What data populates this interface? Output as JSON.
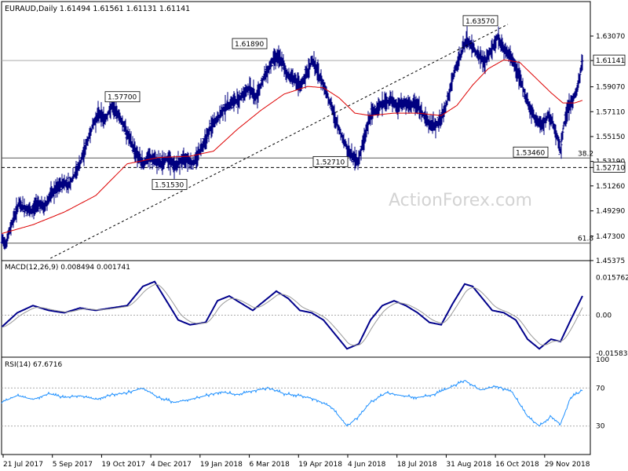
{
  "chart_data": {
    "type": "ohlc",
    "symbol_header": "EURAUD,Daily  1.61494 1.61561 1.61131 1.61141",
    "watermark": "ActionForex.com",
    "price_panel": {
      "ylim": [
        1.4537,
        1.648
      ],
      "ytick_labels": [
        "1.63070",
        "1.61141",
        "1.59070",
        "1.57110",
        "1.55150",
        "1.53190",
        "1.52710",
        "1.51260",
        "1.49290",
        "1.47300",
        "1.45375"
      ],
      "ytick_values": [
        1.6307,
        1.61141,
        1.5907,
        1.5711,
        1.5515,
        1.5319,
        1.5271,
        1.5126,
        1.4929,
        1.473,
        1.45375
      ],
      "last_price": "1.61141",
      "horizontal_lines": [
        {
          "value": 1.61141,
          "label": "",
          "style": "solid",
          "color": "#aaaaaa"
        },
        {
          "value": 1.5346,
          "label": "38.2",
          "style": "solid",
          "color": "#555555"
        },
        {
          "value": 1.5271,
          "label": "1.52710",
          "style": "dashed",
          "color": "#000000"
        },
        {
          "value": 1.4675,
          "label": "61.8",
          "style": "solid",
          "color": "#555555"
        }
      ],
      "trendline": [
        [
          0.083,
          1.4555
        ],
        [
          0.86,
          1.64
        ]
      ],
      "annotations": [
        "1.63570",
        "1.61890",
        "1.57700",
        "1.51530",
        "1.52710",
        "1.53460"
      ],
      "ma_color": "#dd0000",
      "bar_color": "#000080"
    },
    "macd": {
      "label": "MACD(12,26,9) 0.008494 0.001741",
      "ylim": [
        -0.0175,
        0.0175
      ],
      "ytick_labels": [
        "0.015762",
        "0.00",
        "-0.015834"
      ],
      "ytick_values": [
        0.015762,
        0.0,
        -0.015834
      ]
    },
    "rsi": {
      "label": "RSI(14) 67.6716",
      "ylim": [
        0,
        100
      ],
      "ytick_labels": [
        "100",
        "70",
        "30",
        "0"
      ],
      "ytick_values": [
        100,
        70,
        30,
        0
      ]
    },
    "x_labels": [
      "21 Jul 2017",
      "5 Sep 2017",
      "19 Oct 2017",
      "4 Dec 2017",
      "19 Jan 2018",
      "6 Mar 2018",
      "19 Apr 2018",
      "4 Jun 2018",
      "18 Jul 2018",
      "31 Aug 2018",
      "16 Oct 2018",
      "29 Nov 2018"
    ],
    "price_keypoints": [
      [
        0,
        1.47
      ],
      [
        6,
        1.468
      ],
      [
        14,
        1.485
      ],
      [
        22,
        1.498
      ],
      [
        30,
        1.495
      ],
      [
        38,
        1.492
      ],
      [
        46,
        1.5
      ],
      [
        54,
        1.495
      ],
      [
        62,
        1.505
      ],
      [
        70,
        1.51
      ],
      [
        78,
        1.515
      ],
      [
        86,
        1.514
      ],
      [
        92,
        1.52
      ],
      [
        100,
        1.53
      ],
      [
        108,
        1.545
      ],
      [
        116,
        1.56
      ],
      [
        124,
        1.57
      ],
      [
        132,
        1.565
      ],
      [
        140,
        1.575
      ],
      [
        148,
        1.57
      ],
      [
        156,
        1.56
      ],
      [
        164,
        1.548
      ],
      [
        172,
        1.538
      ],
      [
        180,
        1.53
      ],
      [
        188,
        1.535
      ],
      [
        196,
        1.532
      ],
      [
        204,
        1.53
      ],
      [
        212,
        1.535
      ],
      [
        220,
        1.528
      ],
      [
        228,
        1.532
      ],
      [
        236,
        1.535
      ],
      [
        244,
        1.53
      ],
      [
        252,
        1.54
      ],
      [
        260,
        1.55
      ],
      [
        268,
        1.56
      ],
      [
        276,
        1.566
      ],
      [
        284,
        1.574
      ],
      [
        292,
        1.578
      ],
      [
        300,
        1.58
      ],
      [
        308,
        1.585
      ],
      [
        316,
        1.59
      ],
      [
        324,
        1.582
      ],
      [
        332,
        1.595
      ],
      [
        340,
        1.605
      ],
      [
        348,
        1.615
      ],
      [
        356,
        1.612
      ],
      [
        364,
        1.6
      ],
      [
        372,
        1.598
      ],
      [
        380,
        1.59
      ],
      [
        388,
        1.6
      ],
      [
        396,
        1.612
      ],
      [
        404,
        1.6
      ],
      [
        412,
        1.59
      ],
      [
        420,
        1.575
      ],
      [
        428,
        1.56
      ],
      [
        436,
        1.548
      ],
      [
        442,
        1.54
      ],
      [
        448,
        1.535
      ],
      [
        454,
        1.532
      ],
      [
        460,
        1.545
      ],
      [
        466,
        1.56
      ],
      [
        472,
        1.57
      ],
      [
        480,
        1.575
      ],
      [
        488,
        1.578
      ],
      [
        496,
        1.58
      ],
      [
        504,
        1.575
      ],
      [
        512,
        1.578
      ],
      [
        520,
        1.575
      ],
      [
        528,
        1.578
      ],
      [
        536,
        1.57
      ],
      [
        544,
        1.562
      ],
      [
        552,
        1.56
      ],
      [
        560,
        1.565
      ],
      [
        568,
        1.58
      ],
      [
        576,
        1.6
      ],
      [
        584,
        1.615
      ],
      [
        592,
        1.628
      ],
      [
        600,
        1.622
      ],
      [
        608,
        1.615
      ],
      [
        616,
        1.61
      ],
      [
        624,
        1.62
      ],
      [
        632,
        1.63
      ],
      [
        640,
        1.62
      ],
      [
        648,
        1.615
      ],
      [
        656,
        1.605
      ],
      [
        664,
        1.59
      ],
      [
        672,
        1.575
      ],
      [
        680,
        1.565
      ],
      [
        688,
        1.56
      ],
      [
        696,
        1.568
      ],
      [
        702,
        1.562
      ],
      [
        708,
        1.552
      ],
      [
        712,
        1.54
      ],
      [
        716,
        1.56
      ],
      [
        722,
        1.575
      ],
      [
        728,
        1.58
      ],
      [
        734,
        1.59
      ],
      [
        740,
        1.611
      ]
    ],
    "ma_keypoints": [
      [
        0,
        1.475
      ],
      [
        40,
        1.482
      ],
      [
        80,
        1.492
      ],
      [
        120,
        1.505
      ],
      [
        160,
        1.53
      ],
      [
        200,
        1.535
      ],
      [
        240,
        1.536
      ],
      [
        270,
        1.54
      ],
      [
        300,
        1.557
      ],
      [
        330,
        1.572
      ],
      [
        360,
        1.585
      ],
      [
        390,
        1.591
      ],
      [
        410,
        1.59
      ],
      [
        430,
        1.582
      ],
      [
        450,
        1.57
      ],
      [
        470,
        1.568
      ],
      [
        500,
        1.57
      ],
      [
        530,
        1.57
      ],
      [
        560,
        1.568
      ],
      [
        580,
        1.576
      ],
      [
        600,
        1.592
      ],
      [
        620,
        1.605
      ],
      [
        640,
        1.612
      ],
      [
        660,
        1.61
      ],
      [
        680,
        1.598
      ],
      [
        700,
        1.586
      ],
      [
        715,
        1.578
      ],
      [
        730,
        1.578
      ],
      [
        740,
        1.58
      ]
    ],
    "macd_keypoints": [
      [
        0,
        -0.005
      ],
      [
        20,
        0.001
      ],
      [
        40,
        0.004
      ],
      [
        60,
        0.002
      ],
      [
        80,
        0.001
      ],
      [
        100,
        0.003
      ],
      [
        120,
        0.002
      ],
      [
        140,
        0.003
      ],
      [
        160,
        0.004
      ],
      [
        180,
        0.012
      ],
      [
        195,
        0.014
      ],
      [
        210,
        0.006
      ],
      [
        225,
        -0.002
      ],
      [
        240,
        -0.004
      ],
      [
        260,
        -0.003
      ],
      [
        275,
        0.006
      ],
      [
        290,
        0.008
      ],
      [
        305,
        0.005
      ],
      [
        320,
        0.002
      ],
      [
        335,
        0.006
      ],
      [
        350,
        0.01
      ],
      [
        365,
        0.007
      ],
      [
        380,
        0.002
      ],
      [
        395,
        0.001
      ],
      [
        410,
        -0.002
      ],
      [
        425,
        -0.008
      ],
      [
        440,
        -0.014
      ],
      [
        455,
        -0.012
      ],
      [
        470,
        -0.002
      ],
      [
        485,
        0.004
      ],
      [
        500,
        0.006
      ],
      [
        515,
        0.004
      ],
      [
        530,
        0.001
      ],
      [
        545,
        -0.003
      ],
      [
        560,
        -0.004
      ],
      [
        575,
        0.005
      ],
      [
        590,
        0.013
      ],
      [
        600,
        0.012
      ],
      [
        610,
        0.008
      ],
      [
        625,
        0.002
      ],
      [
        640,
        0.001
      ],
      [
        655,
        -0.002
      ],
      [
        670,
        -0.01
      ],
      [
        685,
        -0.014
      ],
      [
        700,
        -0.01
      ],
      [
        712,
        -0.011
      ],
      [
        725,
        -0.002
      ],
      [
        740,
        0.008
      ]
    ],
    "rsi_keypoints": [
      [
        0,
        55
      ],
      [
        20,
        62
      ],
      [
        40,
        58
      ],
      [
        60,
        64
      ],
      [
        80,
        60
      ],
      [
        100,
        62
      ],
      [
        120,
        58
      ],
      [
        140,
        63
      ],
      [
        160,
        65
      ],
      [
        180,
        70
      ],
      [
        200,
        60
      ],
      [
        220,
        55
      ],
      [
        240,
        58
      ],
      [
        260,
        62
      ],
      [
        280,
        66
      ],
      [
        300,
        63
      ],
      [
        320,
        67
      ],
      [
        340,
        70
      ],
      [
        360,
        64
      ],
      [
        380,
        62
      ],
      [
        400,
        58
      ],
      [
        420,
        50
      ],
      [
        440,
        30
      ],
      [
        455,
        40
      ],
      [
        470,
        55
      ],
      [
        490,
        65
      ],
      [
        510,
        62
      ],
      [
        530,
        60
      ],
      [
        550,
        63
      ],
      [
        570,
        70
      ],
      [
        590,
        78
      ],
      [
        610,
        68
      ],
      [
        630,
        72
      ],
      [
        650,
        66
      ],
      [
        670,
        40
      ],
      [
        685,
        30
      ],
      [
        700,
        40
      ],
      [
        712,
        32
      ],
      [
        725,
        60
      ],
      [
        740,
        67.6716
      ]
    ]
  }
}
